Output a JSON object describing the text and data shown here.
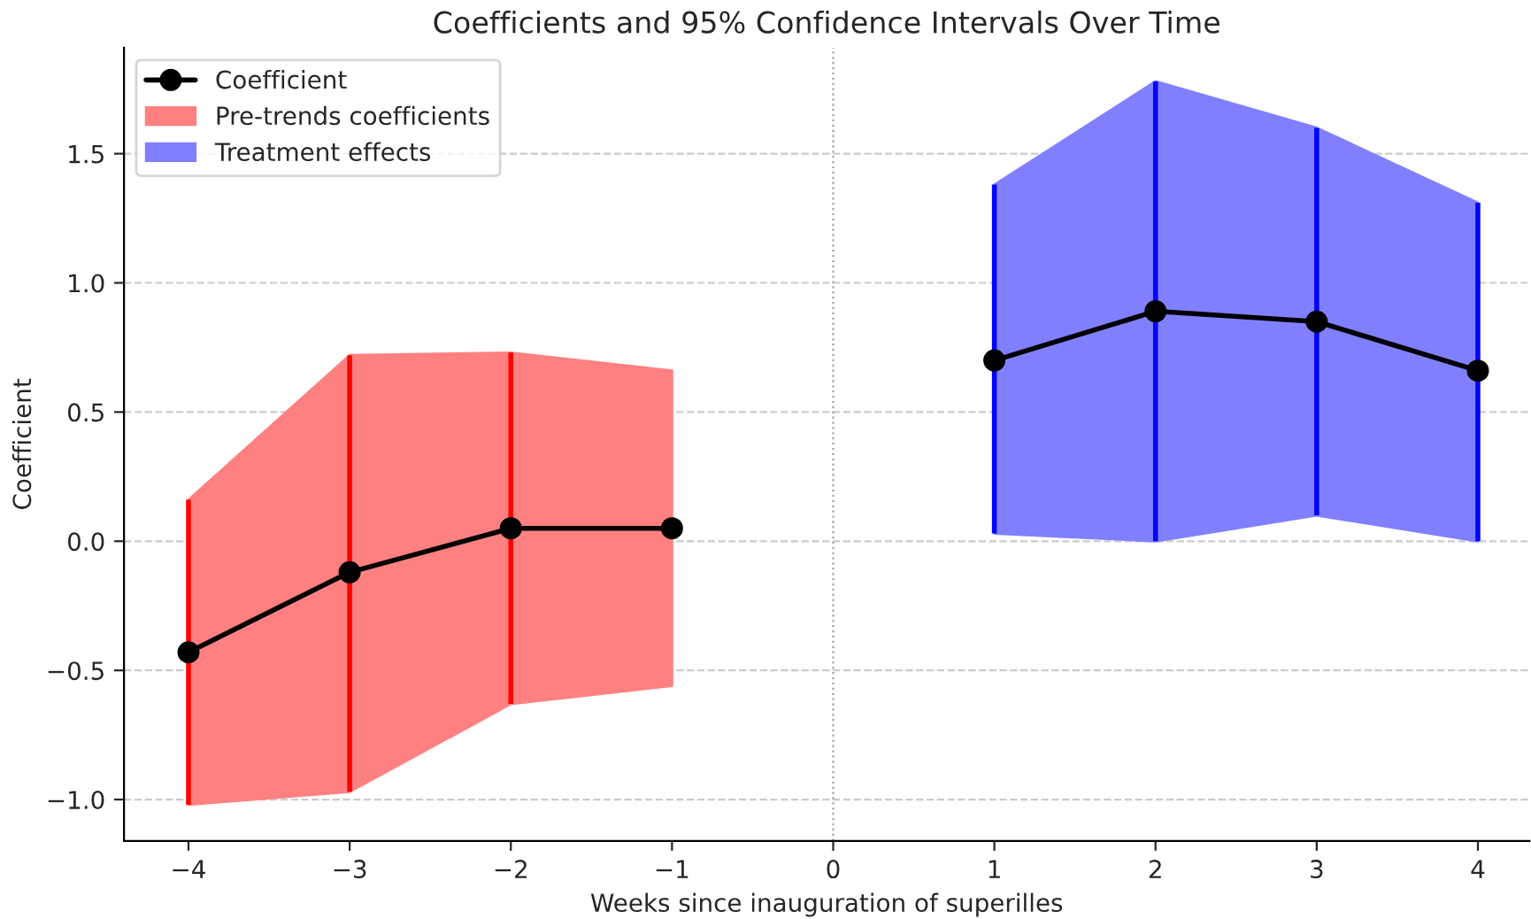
{
  "chart_data": {
    "type": "line",
    "title": "Coefficients and 95% Confidence Intervals Over Time",
    "xlabel": "Weeks since inauguration of superilles",
    "ylabel": "Coefficient",
    "series": [
      {
        "name": "Pre-trends coefficients",
        "type": "line",
        "color": "#ff8080",
        "x": [
          -4,
          -3,
          -2,
          -1
        ],
        "values": [
          null,
          null,
          null,
          null
        ],
        "lower": [
          -1.02,
          -0.97,
          -0.63,
          -0.56
        ],
        "upper": [
          0.16,
          0.72,
          0.73,
          0.66
        ]
      },
      {
        "name": "Treatment effects",
        "type": "line",
        "color": "#8080ff",
        "x": [
          1,
          2,
          3,
          4
        ],
        "values": [
          null,
          null,
          null,
          null
        ],
        "lower": [
          0.03,
          0.0,
          0.1,
          0.0
        ],
        "upper": [
          1.38,
          1.78,
          1.6,
          1.31
        ]
      },
      {
        "name": "Coefficient",
        "type": "line",
        "color": "#000000",
        "marker": "circle",
        "x": [
          -4,
          -3,
          -2,
          -1,
          0,
          1,
          2,
          3,
          4
        ],
        "values": [
          -0.43,
          -0.12,
          0.05,
          0.05,
          null,
          0.7,
          0.89,
          0.85,
          0.66
        ],
        "errors": [
          [
            -1.02,
            0.16
          ],
          [
            -0.97,
            0.72
          ],
          [
            -0.63,
            0.73
          ],
          null,
          null,
          [
            0.03,
            1.38
          ],
          [
            0.0,
            1.78
          ],
          [
            0.1,
            1.6
          ],
          [
            0.0,
            1.31
          ]
        ]
      }
    ],
    "ref_lines": [
      {
        "axis": "x",
        "value": 0,
        "color": "#a0a0a0",
        "line_style": "dotted"
      }
    ],
    "xlim": [
      -4.4,
      4.32
    ],
    "ylim": [
      -1.16,
      1.91
    ],
    "xticks": [
      {
        "value": -4,
        "label": "−4"
      },
      {
        "value": -3,
        "label": "−3"
      },
      {
        "value": -2,
        "label": "−2"
      },
      {
        "value": -1,
        "label": "−1"
      },
      0,
      1,
      2,
      3,
      4
    ],
    "yticks": [
      {
        "value": -1.0,
        "label": "−1.0"
      },
      {
        "value": -0.5,
        "label": "−0.5"
      },
      {
        "value": 0.0,
        "label": "0.0"
      },
      {
        "value": 0.5,
        "label": "0.5"
      },
      {
        "value": 1.0,
        "label": "1.0"
      },
      {
        "value": 1.5,
        "label": "1.5"
      }
    ],
    "grid": "y",
    "legend": "top left"
  }
}
